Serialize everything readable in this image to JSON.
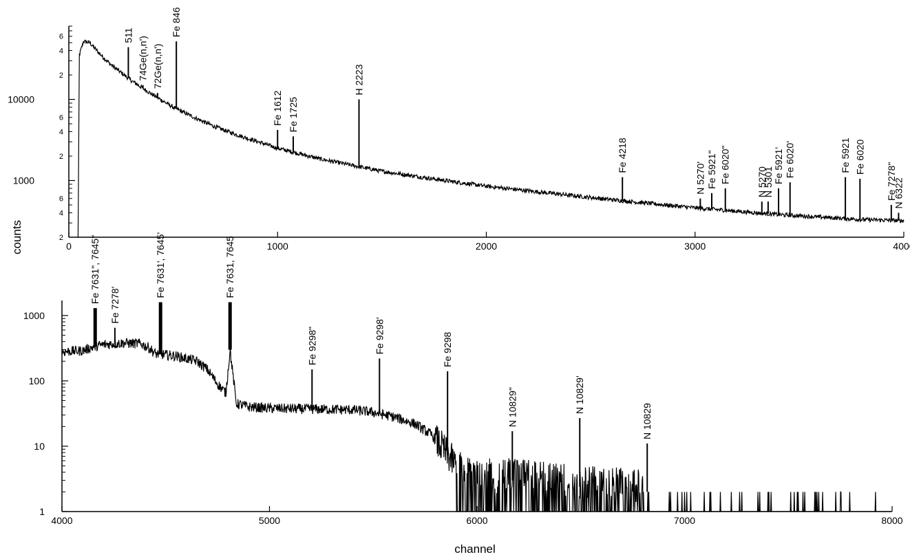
{
  "chart_data": [
    {
      "type": "line",
      "panel": "top",
      "scale": "log",
      "xlim": [
        0,
        4000
      ],
      "ylim": [
        200,
        80000
      ],
      "x_ticks": [
        "0",
        "1000",
        "2000",
        "3000",
        "4000"
      ],
      "y_major_ticks": [
        "1000",
        "10000"
      ],
      "y_minor_labels": [
        "2",
        "4",
        "6",
        "2",
        "4",
        "6",
        "2",
        "4",
        "6"
      ],
      "ylabel": "counts",
      "continuum": [
        [
          40,
          2
        ],
        [
          50,
          35000
        ],
        [
          70,
          52000
        ],
        [
          100,
          50000
        ],
        [
          150,
          36000
        ],
        [
          200,
          27000
        ],
        [
          300,
          17000
        ],
        [
          400,
          11500
        ],
        [
          500,
          8000
        ],
        [
          600,
          6000
        ],
        [
          700,
          4600
        ],
        [
          800,
          3700
        ],
        [
          1000,
          2500
        ],
        [
          1200,
          1850
        ],
        [
          1500,
          1300
        ],
        [
          1800,
          1000
        ],
        [
          2000,
          850
        ],
        [
          2300,
          700
        ],
        [
          2600,
          580
        ],
        [
          3000,
          460
        ],
        [
          3400,
          380
        ],
        [
          3800,
          330
        ],
        [
          4000,
          320
        ]
      ],
      "peaks": [
        {
          "x": 285,
          "y": 44000,
          "label": "511"
        },
        {
          "x": 355,
          "y": 15000,
          "label": "74Ge(n,n')"
        },
        {
          "x": 425,
          "y": 12000,
          "label": "72Ge(n,n')"
        },
        {
          "x": 515,
          "y": 52000,
          "label": "Fe 846"
        },
        {
          "x": 1000,
          "y": 4200,
          "label": "Fe 1612"
        },
        {
          "x": 1075,
          "y": 3500,
          "label": "Fe 1725"
        },
        {
          "x": 1390,
          "y": 10000,
          "label": "H 2223"
        },
        {
          "x": 2652,
          "y": 1100,
          "label": "Fe 4218"
        },
        {
          "x": 3025,
          "y": 600,
          "label": "N 5270'"
        },
        {
          "x": 3080,
          "y": 700,
          "label": "Fe 5921\""
        },
        {
          "x": 3145,
          "y": 800,
          "label": "Fe 6020\""
        },
        {
          "x": 3320,
          "y": 550,
          "label": "N 5270"
        },
        {
          "x": 3350,
          "y": 550,
          "label": "N 5301"
        },
        {
          "x": 3400,
          "y": 800,
          "label": "Fe 5921'"
        },
        {
          "x": 3455,
          "y": 950,
          "label": "Fe 6020'"
        },
        {
          "x": 3720,
          "y": 1100,
          "label": "Fe 5921"
        },
        {
          "x": 3790,
          "y": 1050,
          "label": "Fe 6020"
        },
        {
          "x": 3940,
          "y": 500,
          "label": "Fe 7278\""
        },
        {
          "x": 3975,
          "y": 400,
          "label": "N 6322"
        }
      ]
    },
    {
      "type": "line",
      "panel": "bottom",
      "scale": "log",
      "xlim": [
        4000,
        8000
      ],
      "ylim": [
        1,
        1700
      ],
      "x_ticks": [
        "4000",
        "5000",
        "6000",
        "7000",
        "8000"
      ],
      "y_major_ticks": [
        "1",
        "10",
        "100",
        "1000"
      ],
      "xlabel": "channel",
      "continuum": [
        [
          4000,
          280
        ],
        [
          4100,
          290
        ],
        [
          4150,
          330
        ],
        [
          4200,
          360
        ],
        [
          4300,
          380
        ],
        [
          4380,
          370
        ],
        [
          4420,
          320
        ],
        [
          4450,
          260
        ],
        [
          4550,
          240
        ],
        [
          4650,
          200
        ],
        [
          4700,
          150
        ],
        [
          4750,
          90
        ],
        [
          4790,
          65
        ],
        [
          4810,
          300
        ],
        [
          4840,
          45
        ],
        [
          4900,
          40
        ],
        [
          5000,
          38
        ],
        [
          5200,
          37
        ],
        [
          5400,
          36
        ],
        [
          5500,
          33
        ],
        [
          5600,
          28
        ],
        [
          5700,
          22
        ],
        [
          5780,
          15
        ],
        [
          5850,
          8
        ],
        [
          5900,
          5
        ],
        [
          6000,
          3
        ],
        [
          6200,
          3
        ],
        [
          6400,
          2.5
        ],
        [
          6600,
          2.3
        ],
        [
          6800,
          2
        ]
      ],
      "peaks": [
        {
          "x": 4160,
          "y": 1300,
          "label": "Fe 7631\", 7645\""
        },
        {
          "x": 4255,
          "y": 650,
          "label": "Fe 7278'"
        },
        {
          "x": 4475,
          "y": 1600,
          "label": "Fe 7631', 7645'"
        },
        {
          "x": 4810,
          "y": 1600,
          "label": "Fe 7631, 7645"
        },
        {
          "x": 5205,
          "y": 150,
          "label": "Fe 9298\""
        },
        {
          "x": 5530,
          "y": 220,
          "label": "Fe 9298'"
        },
        {
          "x": 5858,
          "y": 140,
          "label": "Fe 9298"
        },
        {
          "x": 6170,
          "y": 17,
          "label": "N 10829\""
        },
        {
          "x": 6495,
          "y": 27,
          "label": "N 10829'"
        },
        {
          "x": 6820,
          "y": 11,
          "label": "N 10829"
        }
      ]
    }
  ]
}
